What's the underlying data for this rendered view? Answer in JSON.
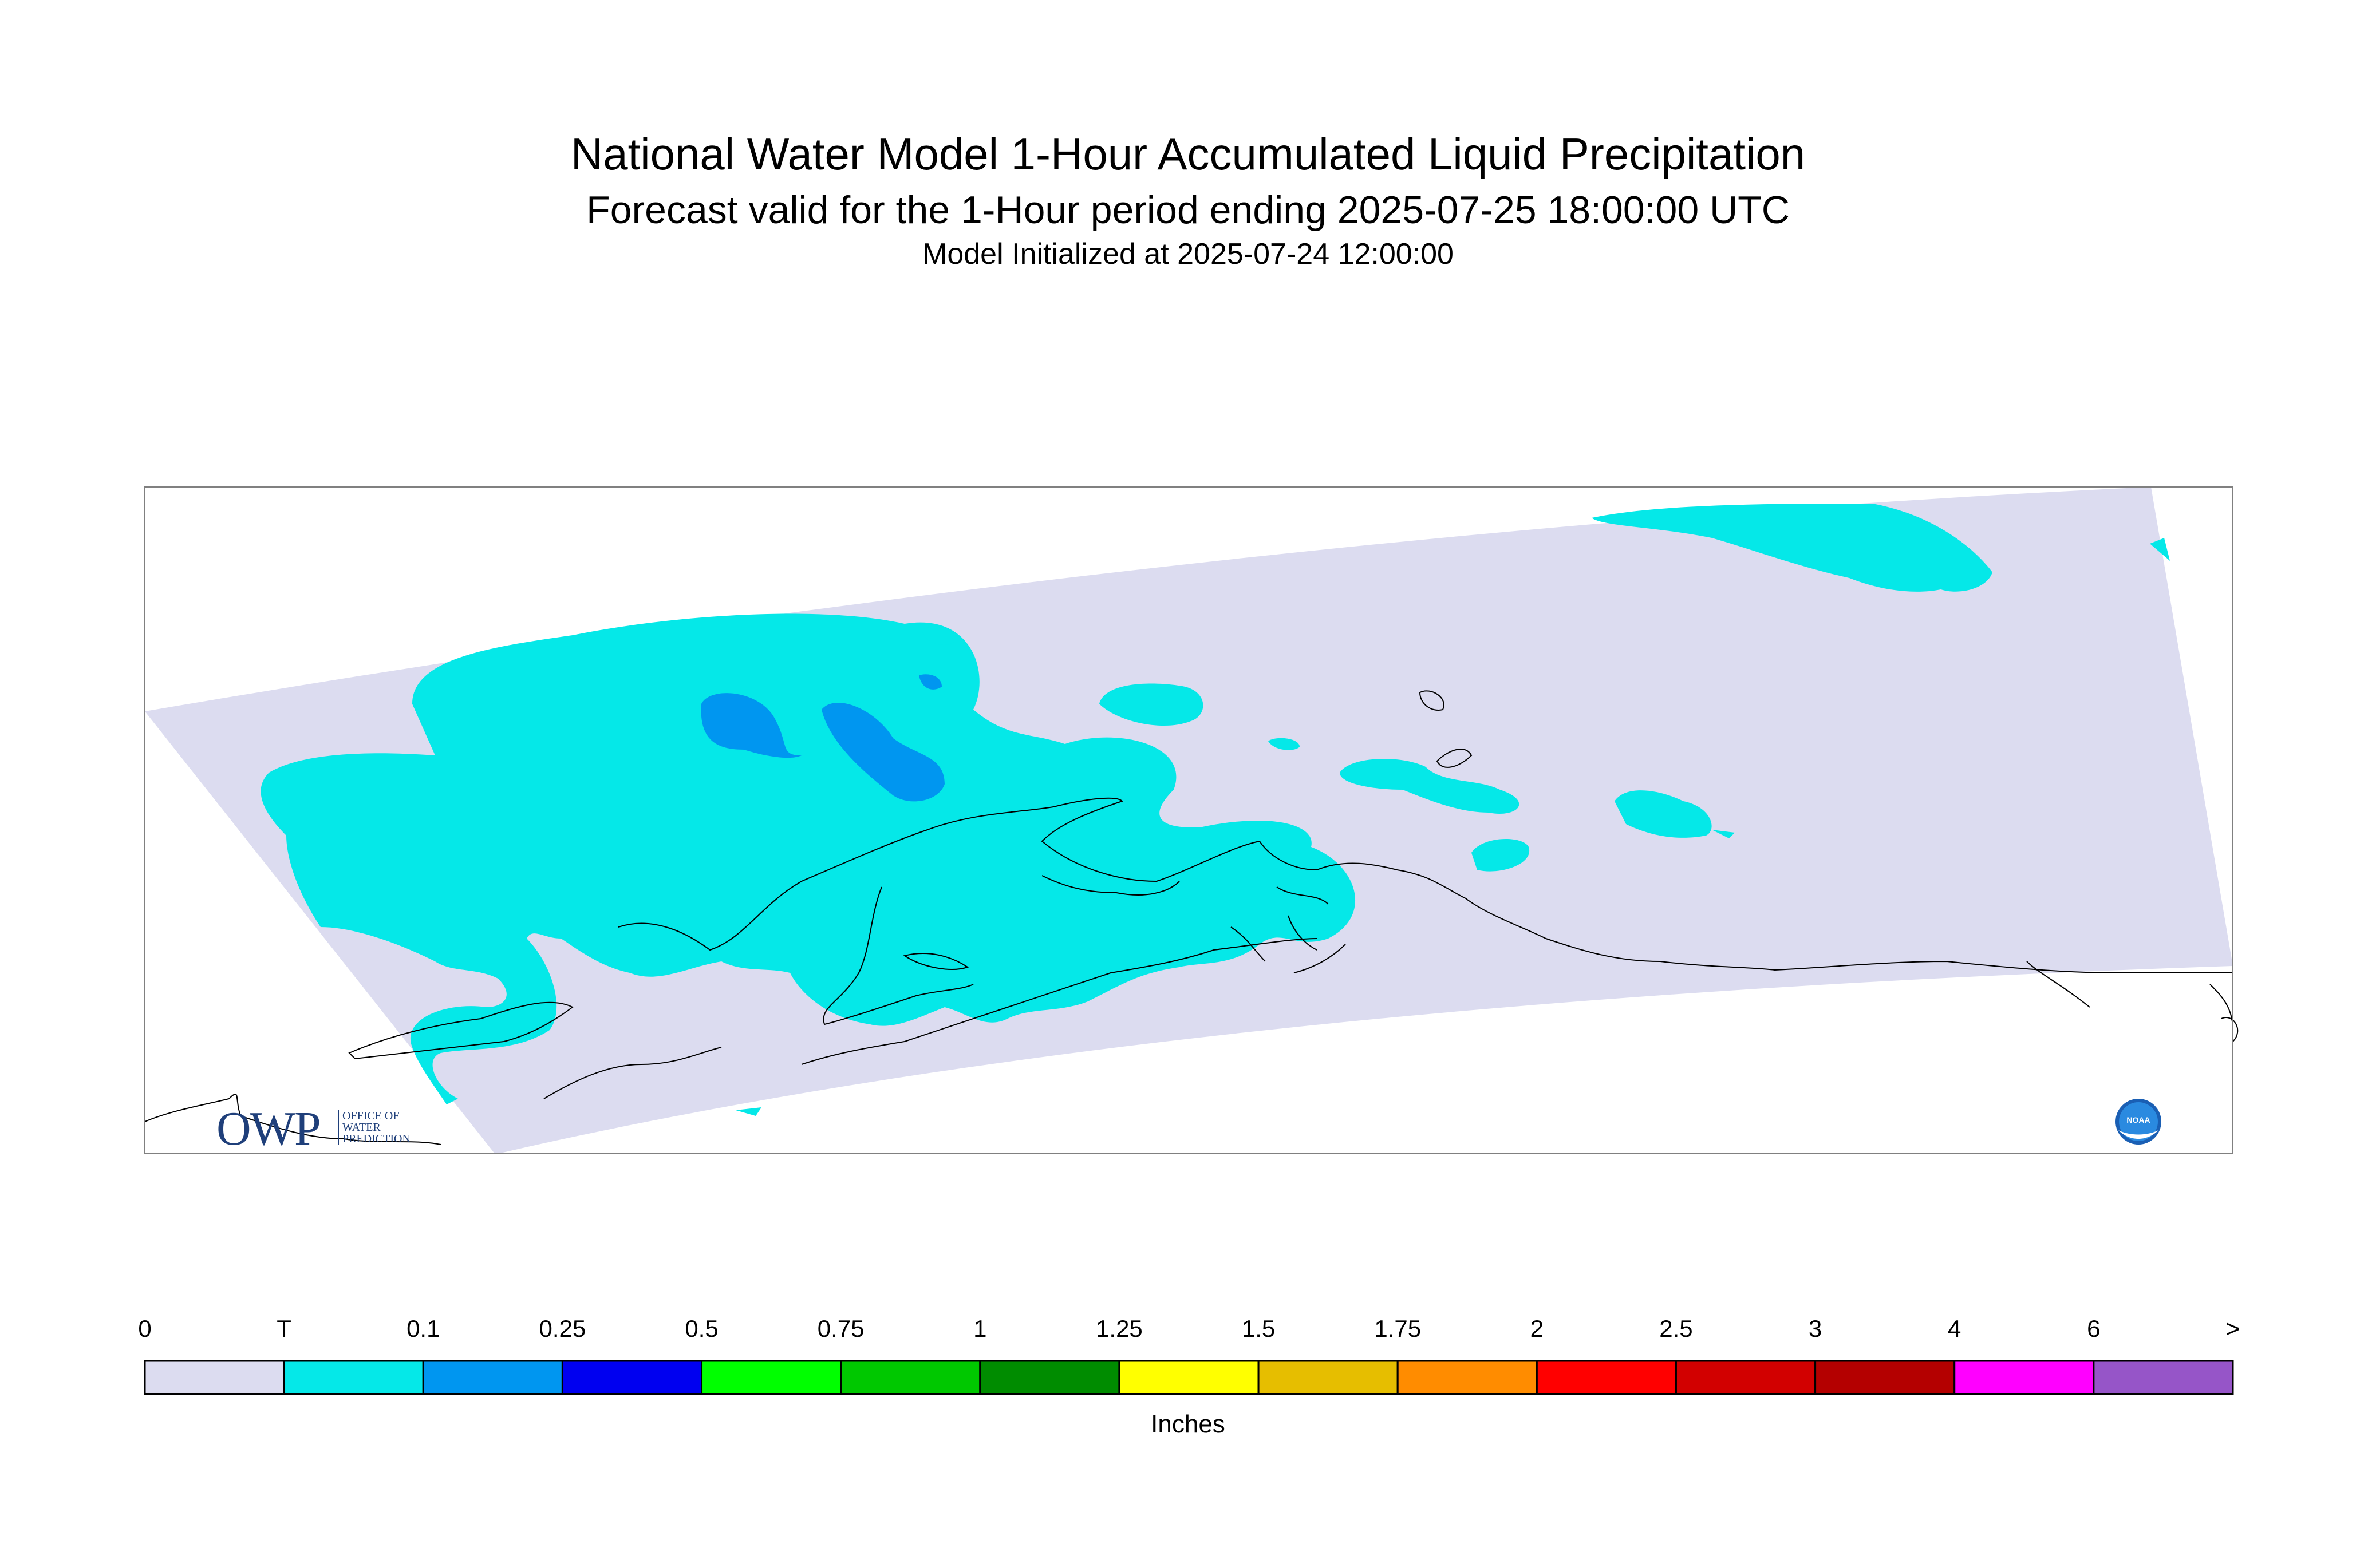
{
  "title": "National Water Model 1-Hour Accumulated Liquid Precipitation",
  "subtitle": "Forecast valid for the 1-Hour period ending 2025-07-25 18:00:00 UTC",
  "init_line": "Model Initialized at 2025-07-24 12:00:00",
  "logos": {
    "owp_letters": "OWP",
    "owp_subtext": [
      "OFFICE OF",
      "WATER",
      "PREDICTION"
    ],
    "noaa_text": "NOAA"
  },
  "legend": {
    "units": "Inches",
    "labels": [
      "0",
      "T",
      "0.1",
      "0.25",
      "0.5",
      "0.75",
      "1",
      "1.25",
      "1.5",
      "1.75",
      "2",
      "2.5",
      "3",
      "4",
      "6",
      ">"
    ],
    "colors": [
      "#dcdcf0",
      "#05e8e8",
      "#0096f0",
      "#0000f0",
      "#00ff00",
      "#00c800",
      "#008c00",
      "#ffff00",
      "#e6be00",
      "#ff8c00",
      "#ff0000",
      "#d20000",
      "#b40000",
      "#ff00ff",
      "#9655c8"
    ]
  },
  "colors": {
    "domain_fill": "#dcdcf0",
    "trace": "#05e8e8",
    "light_precip": "#0096f0",
    "coastline": "#000000",
    "frame": "#808080"
  }
}
